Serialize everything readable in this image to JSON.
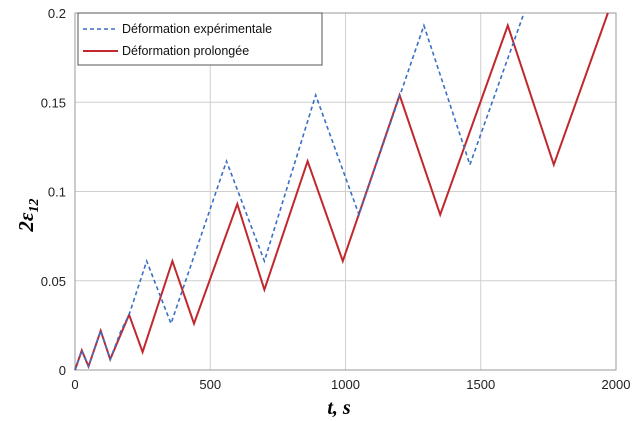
{
  "chart_data": {
    "type": "line",
    "title": "",
    "xlabel": "t, s",
    "ylabel_main": "2ε",
    "ylabel_sub": "12",
    "xlim": [
      0,
      2000
    ],
    "ylim": [
      0,
      0.2
    ],
    "x_ticks": [
      "0",
      "500",
      "1000",
      "1500",
      "2000"
    ],
    "y_ticks": [
      "0",
      "0.05",
      "0.1",
      "0.15",
      "0.2"
    ],
    "grid": true,
    "legend_position": "top-left",
    "series": [
      {
        "name": "Déformation expérimentale",
        "color": "#3a6fc4",
        "style": "dashed",
        "x": [
          0,
          25,
          50,
          95,
          130,
          170,
          200,
          265,
          355,
          560,
          700,
          890,
          1050,
          1290,
          1460,
          1660
        ],
        "y": [
          0,
          0.011,
          0.002,
          0.022,
          0.006,
          0.022,
          0.031,
          0.061,
          0.026,
          0.117,
          0.061,
          0.154,
          0.087,
          0.193,
          0.115,
          0.2
        ]
      },
      {
        "name": "Déformation prolongée",
        "color": "#c0282d",
        "style": "solid",
        "x": [
          0,
          25,
          50,
          95,
          130,
          200,
          250,
          360,
          440,
          600,
          700,
          860,
          990,
          1200,
          1350,
          1600,
          1770,
          1970
        ],
        "y": [
          0,
          0.011,
          0.002,
          0.022,
          0.006,
          0.031,
          0.01,
          0.061,
          0.026,
          0.093,
          0.045,
          0.117,
          0.061,
          0.154,
          0.087,
          0.193,
          0.115,
          0.2
        ]
      }
    ]
  }
}
